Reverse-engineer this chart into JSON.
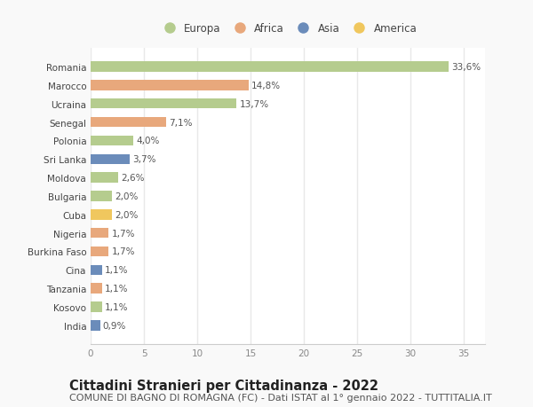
{
  "countries": [
    "Romania",
    "Marocco",
    "Ucraina",
    "Senegal",
    "Polonia",
    "Sri Lanka",
    "Moldova",
    "Bulgaria",
    "Cuba",
    "Nigeria",
    "Burkina Faso",
    "Cina",
    "Tanzania",
    "Kosovo",
    "India"
  ],
  "values": [
    33.6,
    14.8,
    13.7,
    7.1,
    4.0,
    3.7,
    2.6,
    2.0,
    2.0,
    1.7,
    1.7,
    1.1,
    1.1,
    1.1,
    0.9
  ],
  "labels": [
    "33,6%",
    "14,8%",
    "13,7%",
    "7,1%",
    "4,0%",
    "3,7%",
    "2,6%",
    "2,0%",
    "2,0%",
    "1,7%",
    "1,7%",
    "1,1%",
    "1,1%",
    "1,1%",
    "0,9%"
  ],
  "continents": [
    "Europa",
    "Africa",
    "Europa",
    "Africa",
    "Europa",
    "Asia",
    "Europa",
    "Europa",
    "America",
    "Africa",
    "Africa",
    "Asia",
    "Africa",
    "Europa",
    "Asia"
  ],
  "colors": {
    "Europa": "#b5cc8e",
    "Africa": "#e8a87c",
    "Asia": "#6b8cba",
    "America": "#f0c75e"
  },
  "legend_order": [
    "Europa",
    "Africa",
    "Asia",
    "America"
  ],
  "title_bold": "Cittadini Stranieri per Cittadinanza - 2022",
  "subtitle": "COMUNE DI BAGNO DI ROMAGNA (FC) - Dati ISTAT al 1° gennaio 2022 - TUTTITALIA.IT",
  "xlim": [
    0,
    37
  ],
  "xticks": [
    0,
    5,
    10,
    15,
    20,
    25,
    30,
    35
  ],
  "background_color": "#f9f9f9",
  "plot_bg_color": "#ffffff",
  "grid_color": "#e8e8e8",
  "bar_height": 0.55,
  "title_fontsize": 10.5,
  "subtitle_fontsize": 8,
  "label_fontsize": 7.5,
  "tick_fontsize": 7.5,
  "legend_fontsize": 8.5
}
